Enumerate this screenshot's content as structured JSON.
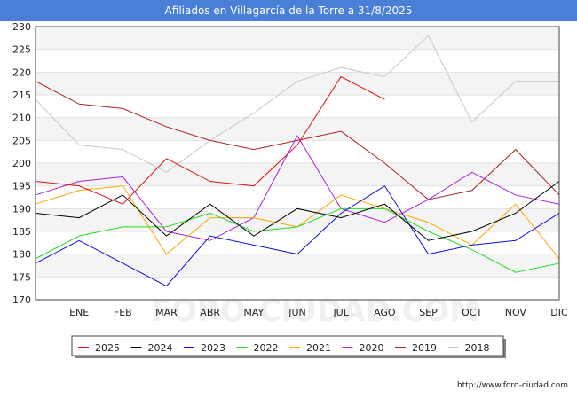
{
  "header": {
    "title": "Afiliados en Villagarcía de la Torre a 31/8/2025"
  },
  "footer": {
    "credit": "http://www.foro-ciudad.com"
  },
  "watermark": "FORO-CIUDAD.COM",
  "chart_data": {
    "type": "line",
    "title": "Afiliados en Villagarcía de la Torre a 31/8/2025",
    "xlabel": "",
    "ylabel": "",
    "categories": [
      "",
      "ENE",
      "FEB",
      "MAR",
      "ABR",
      "MAY",
      "JUN",
      "JUL",
      "AGO",
      "SEP",
      "OCT",
      "NOV",
      "DIC"
    ],
    "ylim": [
      170,
      230
    ],
    "yticks": [
      170,
      175,
      180,
      185,
      190,
      195,
      200,
      205,
      210,
      215,
      220,
      225,
      230
    ],
    "grid": true,
    "legend_position": "bottom",
    "series": [
      {
        "name": "2025",
        "color": "#dd1111",
        "values": [
          196,
          195,
          191,
          201,
          196,
          195,
          204,
          219,
          214,
          null,
          null,
          null,
          null
        ]
      },
      {
        "name": "2024",
        "color": "#000000",
        "values": [
          189,
          188,
          193,
          184,
          191,
          184,
          190,
          188,
          191,
          183,
          185,
          189,
          196
        ]
      },
      {
        "name": "2023",
        "color": "#1111dd",
        "values": [
          178,
          183,
          178,
          173,
          184,
          182,
          180,
          189,
          195,
          180,
          182,
          183,
          189
        ]
      },
      {
        "name": "2022",
        "color": "#22dd22",
        "values": [
          179,
          184,
          186,
          186,
          189,
          185,
          186,
          190,
          190,
          185,
          181,
          176,
          178
        ]
      },
      {
        "name": "2021",
        "color": "#ffa500",
        "values": [
          191,
          194,
          195,
          180,
          188,
          188,
          186,
          193,
          190,
          187,
          182,
          191,
          179
        ]
      },
      {
        "name": "2020",
        "color": "#aa22dd",
        "values": [
          193,
          196,
          197,
          185,
          183,
          188,
          206,
          190,
          187,
          192,
          198,
          193,
          191
        ]
      },
      {
        "name": "2019",
        "color": "#aa2222",
        "values": [
          218,
          213,
          212,
          208,
          205,
          203,
          205,
          207,
          200,
          192,
          194,
          203,
          193
        ]
      },
      {
        "name": "2018",
        "color": "#c8c8c8",
        "values": [
          214,
          204,
          203,
          198,
          205,
          211,
          218,
          221,
          219,
          228,
          209,
          218,
          218
        ]
      }
    ]
  }
}
